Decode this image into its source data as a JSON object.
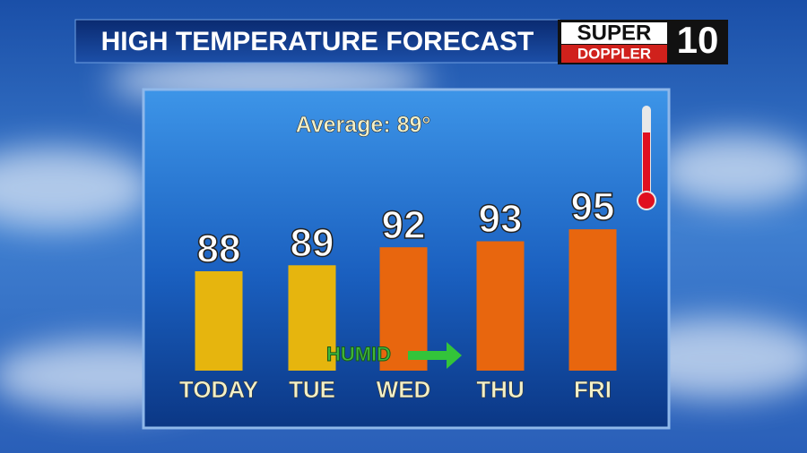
{
  "chart_data": {
    "type": "bar",
    "title": "HIGH TEMPERATURE FORECAST",
    "subtitle": "Average: 89°",
    "categories": [
      "TODAY",
      "TUE",
      "WED",
      "THU",
      "FRI"
    ],
    "values": [
      88,
      89,
      92,
      93,
      95
    ],
    "colors": [
      "#e6b50e",
      "#e6b50e",
      "#e8660e",
      "#e8660e",
      "#e8660e"
    ],
    "annotation": "HUMID",
    "logo_text": [
      "SUPER",
      "DOPPLER",
      "10"
    ]
  }
}
